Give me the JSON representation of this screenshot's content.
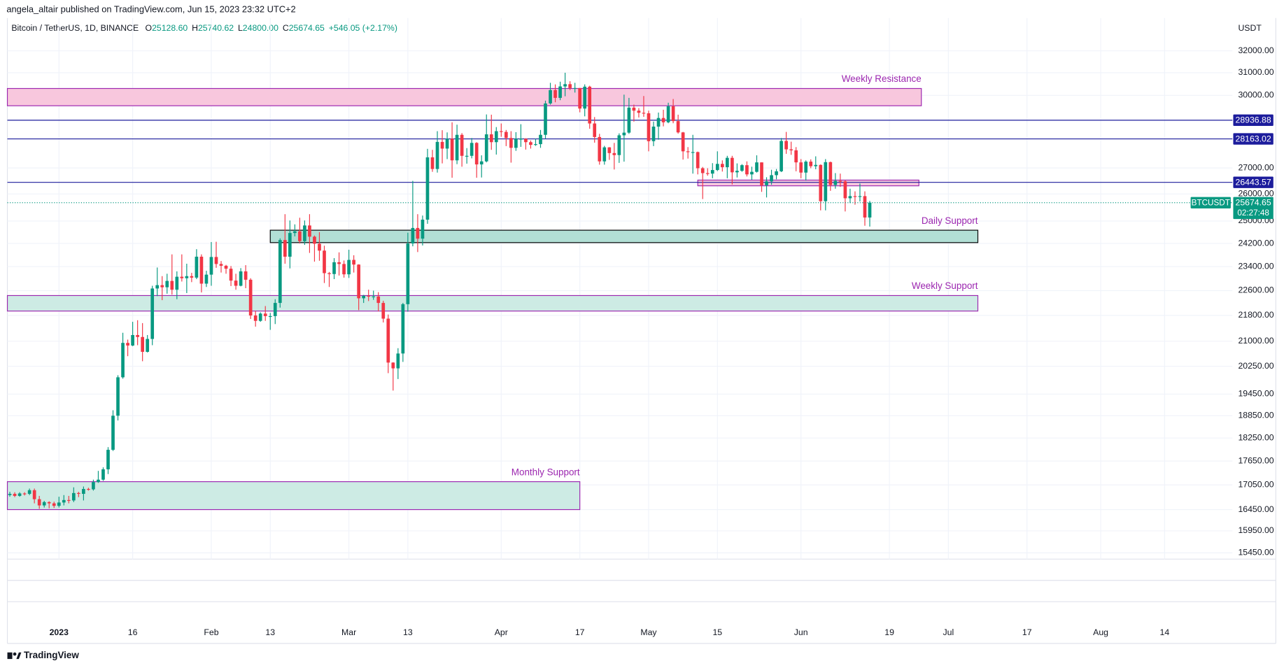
{
  "chart_data": {
    "type": "candlestick",
    "publisher_line": "angela_altair published on TradingView.com, Jun 15, 2023 23:32 UTC+2",
    "legend": {
      "symbol": "Bitcoin / TetherUS, 1D, BINANCE",
      "ohlc": [
        {
          "key": "O",
          "value": "25128.60"
        },
        {
          "key": "H",
          "value": "25740.62"
        },
        {
          "key": "L",
          "value": "24800.00"
        },
        {
          "key": "C",
          "value": "25674.65"
        }
      ],
      "change": "+546.05 (+2.17%)"
    },
    "unit": "USDT",
    "brand": "TradingView",
    "log_scale": true,
    "grid": true,
    "up_color": "#089981",
    "down_color": "#f23645",
    "candles": {
      "open": [
        16800,
        16830,
        16780,
        16840,
        16830,
        16920,
        16700,
        16550,
        16630,
        16600,
        16540,
        16620,
        16680,
        16670,
        16850,
        16830,
        16950,
        16940,
        17120,
        17180,
        17440,
        17940,
        18850,
        19930,
        20950,
        20870,
        21190,
        21130,
        20680,
        21070,
        22670,
        22780,
        22710,
        22920,
        22630,
        23060,
        23010,
        23080,
        23030,
        23740,
        22830,
        23130,
        23730,
        23490,
        23430,
        23330,
        22930,
        22760,
        23240,
        22960,
        21800,
        21630,
        21860,
        21780,
        21780,
        22200,
        24320,
        23740,
        24570,
        24630,
        24280,
        24840,
        24440,
        24190,
        23950,
        23180,
        23150,
        23550,
        23490,
        23140,
        23630,
        23470,
        22350,
        22430,
        22410,
        22410,
        22200,
        21700,
        20360,
        20190,
        20630,
        22160,
        24200,
        24750,
        24370,
        25050,
        27420,
        26960,
        28040,
        27770,
        28170,
        27300,
        28330,
        27480,
        27480,
        28000,
        27140,
        27260,
        28350,
        28030,
        28480,
        28450,
        28200,
        27800,
        28170,
        28170,
        28030,
        27920,
        27950,
        28330,
        29650,
        30230,
        29890,
        30390,
        30490,
        30320,
        30320,
        29430,
        30380,
        28800,
        28240,
        27260,
        27820,
        27590,
        27510,
        28310,
        28420,
        29470,
        29340,
        29250,
        29230,
        28070,
        28670,
        29030,
        28850,
        29530,
        28900,
        28430,
        27660,
        27630,
        27630,
        26990,
        26800,
        26780,
        26920,
        27160,
        27030,
        27400,
        26830,
        26890,
        27110,
        26750,
        26850,
        27220,
        26330,
        26480,
        26720,
        26870,
        28080,
        27740,
        27700,
        27220,
        26820,
        27250,
        27070,
        27120,
        25730,
        27230,
        26340,
        26500,
        26480,
        25840,
        25920,
        25900,
        25920,
        25128.6
      ],
      "high": [
        16880,
        16870,
        16870,
        16870,
        16960,
        16960,
        16780,
        16660,
        16650,
        16640,
        16760,
        16800,
        16780,
        16990,
        16880,
        17010,
        16980,
        17180,
        17400,
        17490,
        18010,
        19000,
        19990,
        21260,
        21050,
        21600,
        21650,
        21560,
        21190,
        22760,
        23370,
        23080,
        23160,
        23820,
        23240,
        23820,
        23500,
        23190,
        24000,
        23820,
        23260,
        24250,
        24260,
        23590,
        23460,
        23420,
        23160,
        23350,
        23450,
        23010,
        21950,
        21900,
        22100,
        21880,
        22320,
        24380,
        25250,
        25020,
        24880,
        25120,
        25020,
        25250,
        24480,
        24600,
        24120,
        23220,
        23690,
        23890,
        23610,
        23980,
        23790,
        23480,
        22460,
        22630,
        22600,
        22550,
        22270,
        21830,
        20370,
        20790,
        22200,
        24580,
        26500,
        25250,
        25200,
        27760,
        27720,
        28480,
        28520,
        28430,
        28850,
        28750,
        28400,
        27790,
        28200,
        28030,
        27500,
        29180,
        29170,
        28650,
        28800,
        28530,
        28480,
        28440,
        28770,
        28190,
        28100,
        28170,
        28530,
        29770,
        30550,
        30480,
        30600,
        31000,
        30620,
        30550,
        30320,
        30480,
        30420,
        29070,
        28370,
        27880,
        27830,
        28000,
        28390,
        30030,
        29890,
        29600,
        29450,
        29970,
        29340,
        28880,
        29260,
        29380,
        29680,
        29840,
        29170,
        28450,
        27830,
        28330,
        27650,
        27040,
        26990,
        27190,
        27660,
        27300,
        27480,
        27480,
        27180,
        27150,
        27260,
        27050,
        27500,
        27220,
        26640,
        26930,
        26960,
        28200,
        28450,
        28050,
        27830,
        27350,
        27300,
        27340,
        27460,
        27140,
        27350,
        27250,
        26800,
        26780,
        26530,
        26200,
        26100,
        26400,
        26100,
        25740.62
      ],
      "low": [
        16760,
        16750,
        16760,
        16790,
        16800,
        16600,
        16470,
        16500,
        16480,
        16490,
        16500,
        16550,
        16600,
        16630,
        16750,
        16670,
        16910,
        16910,
        17100,
        17150,
        17320,
        17910,
        18720,
        19890,
        20550,
        20850,
        20880,
        20400,
        20660,
        20880,
        22420,
        22290,
        22500,
        22470,
        22320,
        22900,
        22520,
        22880,
        22980,
        22540,
        22720,
        22760,
        23360,
        23200,
        23160,
        22750,
        22630,
        22740,
        22680,
        21690,
        21450,
        21600,
        21630,
        21350,
        21530,
        22050,
        23500,
        23340,
        24450,
        24200,
        24150,
        23870,
        23570,
        23600,
        22850,
        22720,
        22980,
        23100,
        23030,
        23020,
        23200,
        21970,
        22200,
        22260,
        22300,
        21930,
        21580,
        20050,
        19550,
        19880,
        20380,
        21920,
        24100,
        23900,
        24130,
        24900,
        26850,
        26820,
        27180,
        27350,
        26620,
        27150,
        27050,
        27170,
        27380,
        26620,
        26630,
        27220,
        27720,
        27530,
        28250,
        27870,
        27210,
        27680,
        27840,
        27730,
        27770,
        27880,
        27800,
        28170,
        29600,
        29700,
        29790,
        29960,
        30230,
        30120,
        29270,
        29100,
        28580,
        28010,
        27130,
        27130,
        27320,
        26940,
        27200,
        27250,
        28370,
        28880,
        29050,
        29080,
        27660,
        27870,
        28130,
        28680,
        28810,
        28810,
        28380,
        27330,
        27370,
        26780,
        26750,
        25810,
        26700,
        26600,
        26880,
        26860,
        26600,
        26360,
        26630,
        26850,
        26670,
        26540,
        26820,
        26080,
        25870,
        26350,
        26560,
        26840,
        27560,
        27520,
        26870,
        26600,
        26510,
        26990,
        26950,
        25390,
        25390,
        26120,
        26200,
        26270,
        25350,
        25660,
        25600,
        25720,
        24830,
        24800
      ],
      "close": [
        16830,
        16780,
        16840,
        16830,
        16920,
        16700,
        16550,
        16630,
        16600,
        16540,
        16620,
        16680,
        16670,
        16850,
        16830,
        16950,
        16940,
        17120,
        17180,
        17440,
        17940,
        18850,
        19930,
        20950,
        20870,
        21190,
        21130,
        20680,
        21070,
        22670,
        22780,
        22710,
        22920,
        22630,
        23060,
        23010,
        23080,
        23030,
        23740,
        22830,
        23130,
        23730,
        23490,
        23430,
        23330,
        22930,
        22760,
        23240,
        22960,
        21800,
        21630,
        21860,
        21780,
        21780,
        22200,
        24320,
        23740,
        24570,
        24630,
        24280,
        24840,
        24440,
        24190,
        23950,
        23180,
        23150,
        23550,
        23490,
        23140,
        23630,
        23470,
        22350,
        22430,
        22410,
        22410,
        22200,
        21700,
        20360,
        20190,
        20630,
        22160,
        24200,
        24750,
        24370,
        25050,
        27420,
        26960,
        28040,
        27770,
        28170,
        27300,
        28330,
        27480,
        27480,
        28000,
        27140,
        27260,
        28350,
        28030,
        28480,
        28450,
        28200,
        27800,
        28170,
        28170,
        28030,
        27920,
        27950,
        28330,
        29650,
        30230,
        29890,
        30390,
        30490,
        30320,
        30320,
        29430,
        30380,
        28800,
        28240,
        27260,
        27820,
        27590,
        27510,
        28310,
        28420,
        29470,
        29340,
        29250,
        29230,
        28070,
        28670,
        29030,
        28850,
        29530,
        28900,
        28430,
        27660,
        27630,
        27630,
        26990,
        26800,
        26780,
        26920,
        27160,
        27030,
        27400,
        26830,
        26890,
        27110,
        26750,
        26850,
        27220,
        26330,
        26480,
        26720,
        26870,
        28080,
        27740,
        27700,
        27220,
        26820,
        27250,
        27070,
        27120,
        25730,
        27230,
        26340,
        26500,
        26480,
        25840,
        25920,
        25900,
        25920,
        25128.6,
        25674.65
      ]
    },
    "xlim": [
      -0.5,
      248.8
    ],
    "xticks": [
      {
        "value": 10,
        "label": "2023"
      },
      {
        "value": 25,
        "label": "16"
      },
      {
        "value": 41,
        "label": "Feb"
      },
      {
        "value": 53,
        "label": "13"
      },
      {
        "value": 69,
        "label": "Mar"
      },
      {
        "value": 81,
        "label": "13"
      },
      {
        "value": 100,
        "label": "Apr"
      },
      {
        "value": 116,
        "label": "17"
      },
      {
        "value": 130,
        "label": "May"
      },
      {
        "value": 144,
        "label": "15"
      },
      {
        "value": 161,
        "label": "Jun"
      },
      {
        "value": 179,
        "label": "19"
      },
      {
        "value": 191,
        "label": "Jul"
      },
      {
        "value": 207,
        "label": "17"
      },
      {
        "value": 222,
        "label": "Aug"
      },
      {
        "value": 235,
        "label": "14"
      }
    ],
    "ylim": [
      15310,
      33560
    ],
    "yticks": [
      {
        "value": 32000,
        "label": "32000.00"
      },
      {
        "value": 31000,
        "label": "31000.00"
      },
      {
        "value": 30000,
        "label": "30000.00"
      },
      {
        "value": 27000,
        "label": "27000.00"
      },
      {
        "value": 26000,
        "label": "26000.00"
      },
      {
        "value": 25000,
        "label": "25000.00"
      },
      {
        "value": 24200,
        "label": "24200.00"
      },
      {
        "value": 23400,
        "label": "23400.00"
      },
      {
        "value": 22600,
        "label": "22600.00"
      },
      {
        "value": 21800,
        "label": "21800.00"
      },
      {
        "value": 21000,
        "label": "21000.00"
      },
      {
        "value": 20250,
        "label": "20250.00"
      },
      {
        "value": 19450,
        "label": "19450.00"
      },
      {
        "value": 18850,
        "label": "18850.00"
      },
      {
        "value": 18250,
        "label": "18250.00"
      },
      {
        "value": 17650,
        "label": "17650.00"
      },
      {
        "value": 17050,
        "label": "17050.00"
      },
      {
        "value": 16450,
        "label": "16450.00"
      },
      {
        "value": 15950,
        "label": "15950.00"
      },
      {
        "value": 15450,
        "label": "15450.00"
      }
    ],
    "zones": [
      {
        "label": "Weekly Resistance",
        "x0": -0.5,
        "x1": 185.5,
        "low": 29550,
        "high": 30300,
        "fill": "#f8c7dd",
        "stroke": "#9c27b0"
      },
      {
        "x0": 140,
        "x1": 185,
        "low": 26310,
        "high": 26530,
        "fill": "#f8c7dd",
        "stroke": "#9c27b0"
      },
      {
        "label": "Daily Support",
        "x0": 53,
        "x1": 197,
        "low": 24230,
        "high": 24670,
        "fill": "#b2dfd5",
        "stroke": "#000000"
      },
      {
        "label": "Weekly Support",
        "x0": -0.5,
        "x1": 197,
        "low": 21940,
        "high": 22440,
        "fill": "#cdebe4",
        "stroke": "#9c27b0"
      },
      {
        "label": "Monthly Support",
        "x0": -0.5,
        "x1": 116,
        "low": 16450,
        "high": 17130,
        "fill": "#cdebe4",
        "stroke": "#9c27b0"
      }
    ],
    "zone_label_color": "#9c27b0",
    "price_lines": [
      {
        "value": 28936.88,
        "label": "28936.88",
        "color": "#1c1c9c"
      },
      {
        "value": 28163.02,
        "label": "28163.02",
        "color": "#1c1c9c"
      },
      {
        "value": 26443.57,
        "label": "26443.57",
        "color": "#1c1c9c"
      }
    ],
    "last_price": {
      "value": 25674.65,
      "label": "25674.65",
      "symbol": "BTCUSDT",
      "countdown": "02:27:48",
      "color": "#089981"
    }
  }
}
